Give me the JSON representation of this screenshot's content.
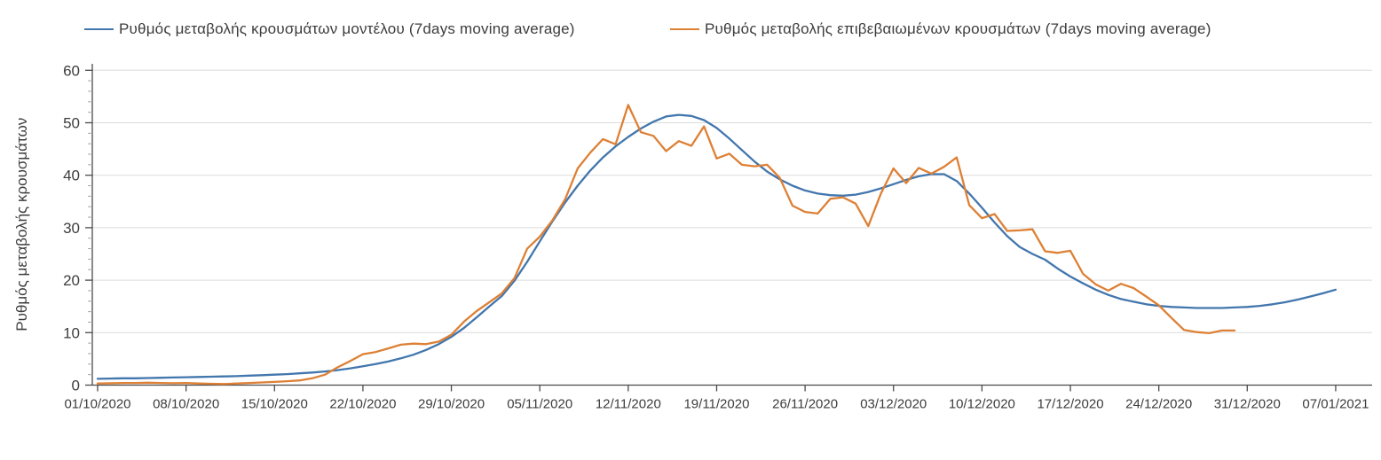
{
  "y_axis": {
    "title": "Ρυθμός μεταβολής κρουσμάτων",
    "tick_labels": [
      "0",
      "10",
      "20",
      "30",
      "40",
      "50",
      "60"
    ]
  },
  "x_axis": {
    "tick_labels": [
      "01/10/2020",
      "08/10/2020",
      "15/10/2020",
      "22/10/2020",
      "29/10/2020",
      "05/11/2020",
      "12/11/2020",
      "19/11/2020",
      "26/11/2020",
      "03/12/2020",
      "10/12/2020",
      "17/12/2020",
      "24/12/2020",
      "31/12/2020",
      "07/01/2021"
    ]
  },
  "colors": {
    "model_line": "#4276ad",
    "confirmed_line": "#dd8035",
    "grid": "#dcdcdc",
    "axis": "#4a4a4a",
    "minor_tick": "#a8a8a8",
    "text": "#3d3d3d"
  },
  "chart_data": {
    "type": "line",
    "title": "",
    "xlabel": "",
    "ylabel": "Ρυθμός μεταβολής κρουσμάτων",
    "ylim": [
      0,
      60
    ],
    "y_major_step": 10,
    "y_minor_step": 2,
    "grid": "horizontal-only",
    "legend_position": "top",
    "x_daily_start": "01/10/2020",
    "x_daily_end": "07/01/2021",
    "x_tick_every_days": 7,
    "x_tick_labels": [
      "01/10/2020",
      "08/10/2020",
      "15/10/2020",
      "22/10/2020",
      "29/10/2020",
      "05/11/2020",
      "12/11/2020",
      "19/11/2020",
      "26/11/2020",
      "03/12/2020",
      "10/12/2020",
      "17/12/2020",
      "24/12/2020",
      "31/12/2020",
      "07/01/2021"
    ],
    "series": [
      {
        "name": "Ρυθμός μεταβολής κρουσμάτων μοντέλου (7days moving average)",
        "color": "#4276ad",
        "values": [
          1.2,
          1.25,
          1.3,
          1.3,
          1.35,
          1.4,
          1.45,
          1.5,
          1.55,
          1.6,
          1.65,
          1.7,
          1.8,
          1.9,
          2.0,
          2.1,
          2.25,
          2.4,
          2.6,
          2.85,
          3.2,
          3.6,
          4.0,
          4.5,
          5.1,
          5.8,
          6.7,
          7.8,
          9.2,
          10.9,
          12.9,
          15.0,
          17.0,
          19.9,
          23.5,
          27.4,
          31.2,
          34.8,
          38.0,
          40.9,
          43.4,
          45.5,
          47.3,
          48.9,
          50.2,
          51.2,
          51.5,
          51.3,
          50.5,
          49.0,
          47.0,
          44.8,
          42.6,
          40.7,
          39.2,
          38.0,
          37.1,
          36.5,
          36.2,
          36.1,
          36.3,
          36.8,
          37.5,
          38.3,
          39.1,
          39.8,
          40.2,
          40.2,
          38.9,
          36.5,
          33.8,
          31.0,
          28.4,
          26.3,
          25.0,
          23.9,
          22.2,
          20.7,
          19.4,
          18.2,
          17.2,
          16.4,
          15.9,
          15.4,
          15.1,
          14.9,
          14.8,
          14.7,
          14.7,
          14.7,
          14.8,
          14.9,
          15.1,
          15.4,
          15.8,
          16.3,
          16.9,
          17.5,
          18.2
        ]
      },
      {
        "name": "Ρυθμός μεταβολής επιβεβαιωμένων κρουσμάτων (7days moving average)",
        "color": "#dd8035",
        "values": [
          0.3,
          0.35,
          0.4,
          0.4,
          0.45,
          0.4,
          0.35,
          0.4,
          0.3,
          0.25,
          0.2,
          0.3,
          0.4,
          0.5,
          0.6,
          0.75,
          0.9,
          1.3,
          2.0,
          3.4,
          4.6,
          5.9,
          6.3,
          7.0,
          7.7,
          7.9,
          7.8,
          8.3,
          9.6,
          12.1,
          14.1,
          15.8,
          17.5,
          20.4,
          26.0,
          28.3,
          31.4,
          35.4,
          41.3,
          44.3,
          46.9,
          45.9,
          53.4,
          48.2,
          47.5,
          44.6,
          46.5,
          45.6,
          49.3,
          43.2,
          44.1,
          42.0,
          41.7,
          42.0,
          39.5,
          34.2,
          33.0,
          32.7,
          35.5,
          35.8,
          34.6,
          30.3,
          36.5,
          41.3,
          38.5,
          41.4,
          40.3,
          41.6,
          43.4,
          34.3,
          31.8,
          32.6,
          29.4,
          29.5,
          29.7,
          25.5,
          25.2,
          25.6,
          21.2,
          19.2,
          18.0,
          19.3,
          18.5,
          16.9,
          15.2,
          12.8,
          10.5,
          10.1,
          9.9,
          10.4,
          10.4,
          null,
          null,
          null,
          null,
          null,
          null,
          null,
          null
        ]
      }
    ]
  }
}
